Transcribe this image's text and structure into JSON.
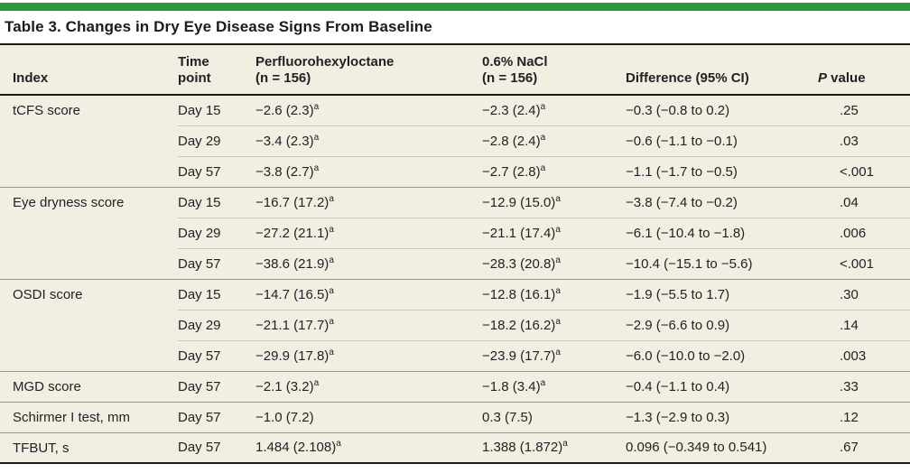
{
  "accent_color": "#2a9939",
  "title": "Table 3. Changes in Dry Eye Disease Signs From Baseline",
  "header": {
    "index": "Index",
    "time_point": "Time\npoint",
    "pfho": "Perfluorohexyloctane\n(n = 156)",
    "nacl": "0.6% NaCl\n(n = 156)",
    "difference": "Difference (95% CI)",
    "p_value_italic": "P",
    "p_value_rest": " value"
  },
  "rows": [
    {
      "index": "tCFS score",
      "rowspan": 3,
      "time": "Day 15",
      "pfho": "−2.6 (2.3)",
      "pfho_sup": "a",
      "nacl": "−2.3 (2.4)",
      "nacl_sup": "a",
      "diff": "−0.3 (−0.8 to 0.2)",
      "p": ".25"
    },
    {
      "time": "Day 29",
      "pfho": "−3.4 (2.3)",
      "pfho_sup": "a",
      "nacl": "−2.8 (2.4)",
      "nacl_sup": "a",
      "diff": "−0.6 (−1.1 to −0.1)",
      "p": ".03"
    },
    {
      "time": "Day 57",
      "pfho": "−3.8 (2.7)",
      "pfho_sup": "a",
      "nacl": "−2.7 (2.8)",
      "nacl_sup": "a",
      "diff": "−1.1 (−1.7 to −0.5)",
      "p": "<.001"
    },
    {
      "index": "Eye dryness score",
      "rowspan": 3,
      "time": "Day 15",
      "pfho": "−16.7 (17.2)",
      "pfho_sup": "a",
      "nacl": "−12.9 (15.0)",
      "nacl_sup": "a",
      "diff": "−3.8 (−7.4 to −0.2)",
      "p": ".04"
    },
    {
      "time": "Day 29",
      "pfho": "−27.2 (21.1)",
      "pfho_sup": "a",
      "nacl": "−21.1 (17.4)",
      "nacl_sup": "a",
      "diff": "−6.1 (−10.4 to −1.8)",
      "p": ".006"
    },
    {
      "time": "Day 57",
      "pfho": "−38.6 (21.9)",
      "pfho_sup": "a",
      "nacl": "−28.3 (20.8)",
      "nacl_sup": "a",
      "diff": "−10.4 (−15.1 to −5.6)",
      "p": "<.001"
    },
    {
      "index": "OSDI score",
      "rowspan": 3,
      "time": "Day 15",
      "pfho": "−14.7 (16.5)",
      "pfho_sup": "a",
      "nacl": "−12.8 (16.1)",
      "nacl_sup": "a",
      "diff": "−1.9 (−5.5 to 1.7)",
      "p": ".30"
    },
    {
      "time": "Day 29",
      "pfho": "−21.1 (17.7)",
      "pfho_sup": "a",
      "nacl": "−18.2 (16.2)",
      "nacl_sup": "a",
      "diff": "−2.9 (−6.6 to 0.9)",
      "p": ".14"
    },
    {
      "time": "Day 57",
      "pfho": "−29.9 (17.8)",
      "pfho_sup": "a",
      "nacl": "−23.9 (17.7)",
      "nacl_sup": "a",
      "diff": "−6.0 (−10.0 to −2.0)",
      "p": ".003"
    },
    {
      "index": "MGD score",
      "rowspan": 1,
      "time": "Day 57",
      "pfho": "−2.1 (3.2)",
      "pfho_sup": "a",
      "nacl": "−1.8 (3.4)",
      "nacl_sup": "a",
      "diff": "−0.4 (−1.1 to 0.4)",
      "p": ".33"
    },
    {
      "index": "Schirmer I test, mm",
      "rowspan": 1,
      "time": "Day 57",
      "pfho": "−1.0 (7.2)",
      "nacl": "0.3 (7.5)",
      "diff": "−1.3 (−2.9 to 0.3)",
      "p": ".12"
    },
    {
      "index": "TFBUT, s",
      "rowspan": 1,
      "time": "Day 57",
      "pfho": "1.484 (2.108)",
      "pfho_sup": "a",
      "nacl": "1.388 (1.872)",
      "nacl_sup": "a",
      "diff": "0.096 (−0.349 to 0.541)",
      "p": ".67"
    }
  ]
}
